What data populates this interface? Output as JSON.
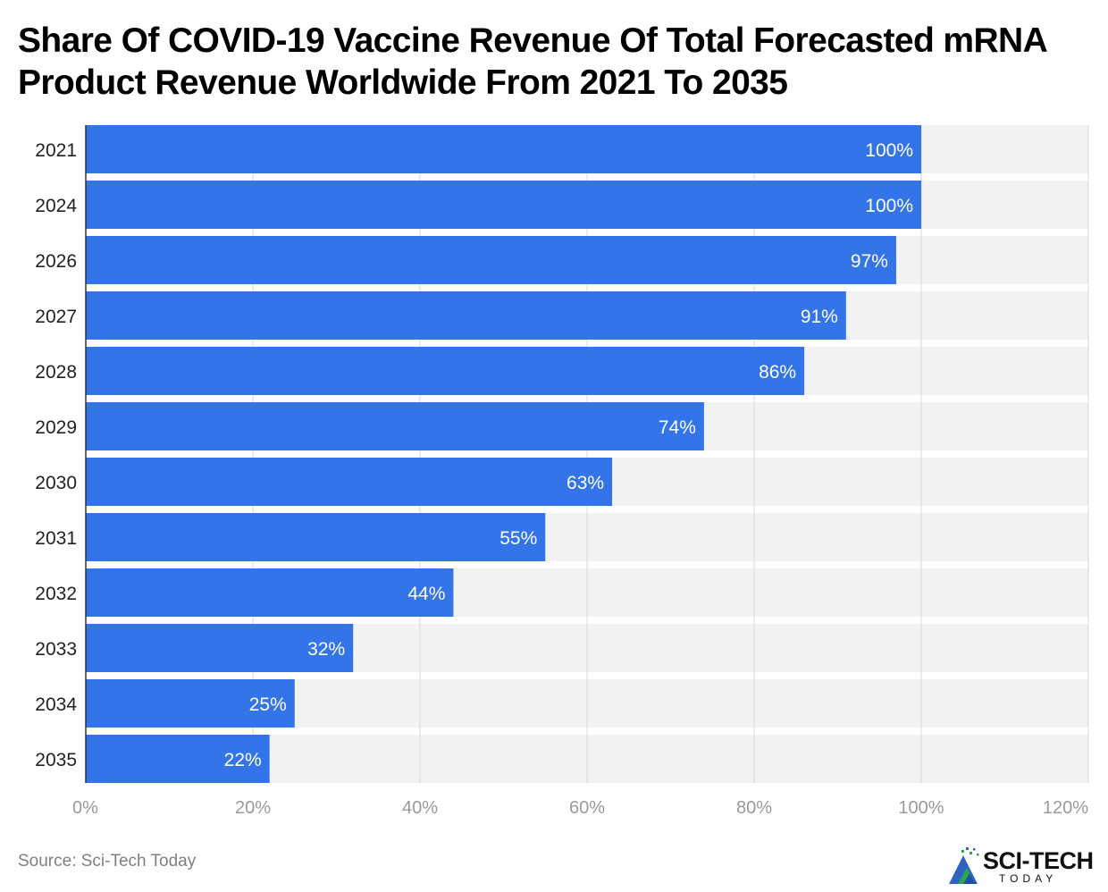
{
  "chart_data": {
    "type": "bar",
    "orientation": "horizontal",
    "title": "Share Of COVID-19 Vaccine Revenue Of Total Forecasted mRNA Product Revenue Worldwide From 2021 To 2035",
    "categories": [
      "2021",
      "2024",
      "2026",
      "2027",
      "2028",
      "2029",
      "2030",
      "2031",
      "2032",
      "2033",
      "2034",
      "2035"
    ],
    "values": [
      100,
      100,
      97,
      91,
      86,
      74,
      63,
      55,
      44,
      32,
      25,
      22
    ],
    "value_suffix": "%",
    "xlim": [
      0,
      120
    ],
    "xticks": [
      0,
      20,
      40,
      60,
      80,
      100,
      120
    ],
    "xlabel": "",
    "ylabel": "",
    "grid": true,
    "bar_color": "#3375e8",
    "track_color": "#f2f2f2",
    "gridline_color": "#d8d8d8",
    "label_color": "#ffffff"
  },
  "footer": {
    "source": "Source: Sci-Tech Today",
    "brand": "SCI-TECH",
    "brand_sub": "TODAY"
  },
  "logo": {
    "icon": "sci-tech-mountain-logo-icon",
    "primary_color": "#2e63c4",
    "secondary_color": "#2ca84a"
  }
}
